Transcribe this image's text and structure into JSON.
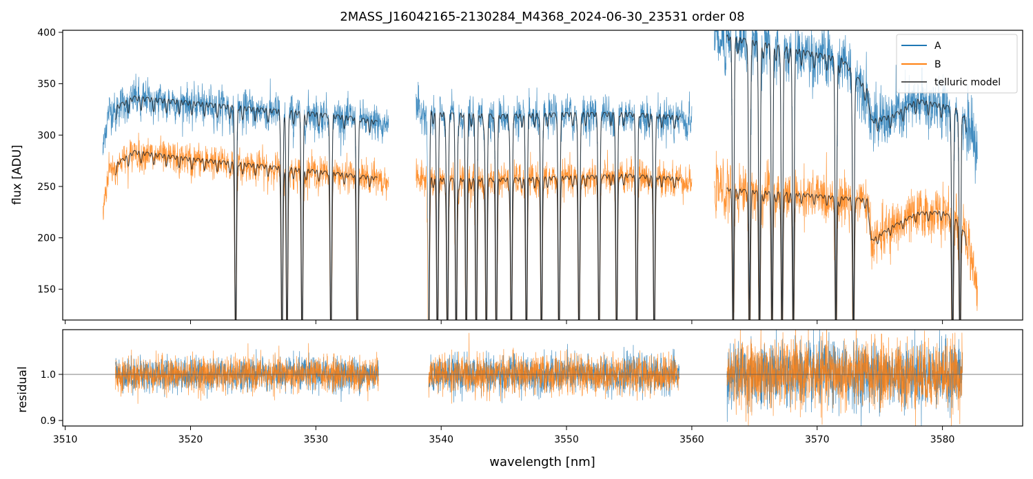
{
  "chart_data": [
    {
      "type": "line",
      "title": "2MASS_J16042165-2130284_M4368_2024-06-30_23531  order 08",
      "xlabel": "",
      "ylabel": "flux [ADU]",
      "xlim": [
        3509.8,
        3586.4
      ],
      "ylim": [
        120,
        402
      ],
      "yticks": [
        150,
        200,
        250,
        300,
        350,
        400
      ],
      "grid": false,
      "legend_position": "top-right",
      "segments": [
        {
          "x_range": [
            3513.0,
            3535.8
          ],
          "series": [
            {
              "name": "A",
              "color": "#1f77b4",
              "baseline": [
                [
                  3513.0,
                  295
                ],
                [
                  3513.5,
                  325
                ],
                [
                  3515.5,
                  338
                ],
                [
                  3520,
                  333
                ],
                [
                  3525,
                  327
                ],
                [
                  3530,
                  322
                ],
                [
                  3533,
                  318
                ],
                [
                  3535.8,
                  312
                ]
              ]
            },
            {
              "name": "B",
              "color": "#ff7f0e",
              "baseline": [
                [
                  3513.0,
                  230
                ],
                [
                  3513.5,
                  268
                ],
                [
                  3515.5,
                  285
                ],
                [
                  3520,
                  278
                ],
                [
                  3525,
                  272
                ],
                [
                  3530,
                  266
                ],
                [
                  3535.8,
                  258
                ]
              ]
            }
          ]
        },
        {
          "x_range": [
            3538.0,
            3560.0
          ],
          "series": [
            {
              "name": "A",
              "color": "#1f77b4",
              "baseline": [
                [
                  3538.0,
                  328
                ],
                [
                  3540,
                  322
                ],
                [
                  3545,
                  320
                ],
                [
                  3550,
                  322
                ],
                [
                  3555,
                  322
                ],
                [
                  3560,
                  318
                ]
              ]
            },
            {
              "name": "B",
              "color": "#ff7f0e",
              "baseline": [
                [
                  3538.0,
                  262
                ],
                [
                  3540,
                  258
                ],
                [
                  3545,
                  258
                ],
                [
                  3550,
                  260
                ],
                [
                  3555,
                  262
                ],
                [
                  3560,
                  258
                ]
              ]
            }
          ]
        },
        {
          "x_range": [
            3561.8,
            3582.8
          ],
          "series": [
            {
              "name": "A",
              "color": "#1f77b4",
              "baseline": [
                [
                  3561.8,
                  400
                ],
                [
                  3565,
                  392
                ],
                [
                  3568,
                  385
                ],
                [
                  3572,
                  375
                ],
                [
                  3574,
                  345
                ],
                [
                  3574.3,
                  315
                ],
                [
                  3576,
                  320
                ],
                [
                  3578,
                  335
                ],
                [
                  3580,
                  330
                ],
                [
                  3581.5,
                  325
                ],
                [
                  3582.3,
                  305
                ],
                [
                  3582.8,
                  275
                ]
              ]
            },
            {
              "name": "B",
              "color": "#ff7f0e",
              "baseline": [
                [
                  3561.8,
                  250
                ],
                [
                  3565,
                  246
                ],
                [
                  3568,
                  244
                ],
                [
                  3572,
                  240
                ],
                [
                  3574,
                  238
                ],
                [
                  3574.3,
                  198
                ],
                [
                  3576,
                  212
                ],
                [
                  3578,
                  225
                ],
                [
                  3580,
                  226
                ],
                [
                  3581.5,
                  215
                ],
                [
                  3582.3,
                  185
                ],
                [
                  3582.8,
                  150
                ]
              ]
            }
          ]
        }
      ],
      "telluric_lines_nm": [
        3523.6,
        3527.3,
        3527.7,
        3528.9,
        3531.2,
        3533.3,
        3539.0,
        3539.7,
        3540.5,
        3541.2,
        3542.0,
        3542.8,
        3543.6,
        3544.4,
        3545.6,
        3546.8,
        3548.0,
        3549.4,
        3551.0,
        3552.6,
        3554.0,
        3555.6,
        3557.0,
        3563.3,
        3564.6,
        3565.4,
        3566.4,
        3567.2,
        3568.1,
        3571.5,
        3572.9,
        3580.8,
        3581.4
      ],
      "legend": [
        "A",
        "B",
        "telluric model"
      ],
      "model_color": "#222222"
    },
    {
      "type": "line",
      "title": "",
      "xlabel": "wavelength [nm]",
      "ylabel": "residual",
      "xlim": [
        3509.8,
        3586.4
      ],
      "ylim": [
        0.888,
        1.097
      ],
      "xticks": [
        3510,
        3520,
        3530,
        3540,
        3550,
        3560,
        3570,
        3580
      ],
      "yticks": [
        0.9,
        1.0
      ],
      "reference_line": 1.0,
      "segments_x": [
        [
          3514.0,
          3535.0
        ],
        [
          3539.0,
          3559.0
        ],
        [
          3562.8,
          3581.6
        ]
      ],
      "noise_scale": [
        0.018,
        0.02,
        0.035
      ],
      "series": [
        {
          "name": "A",
          "color": "#1f77b4"
        },
        {
          "name": "B",
          "color": "#ff7f0e"
        }
      ]
    }
  ]
}
